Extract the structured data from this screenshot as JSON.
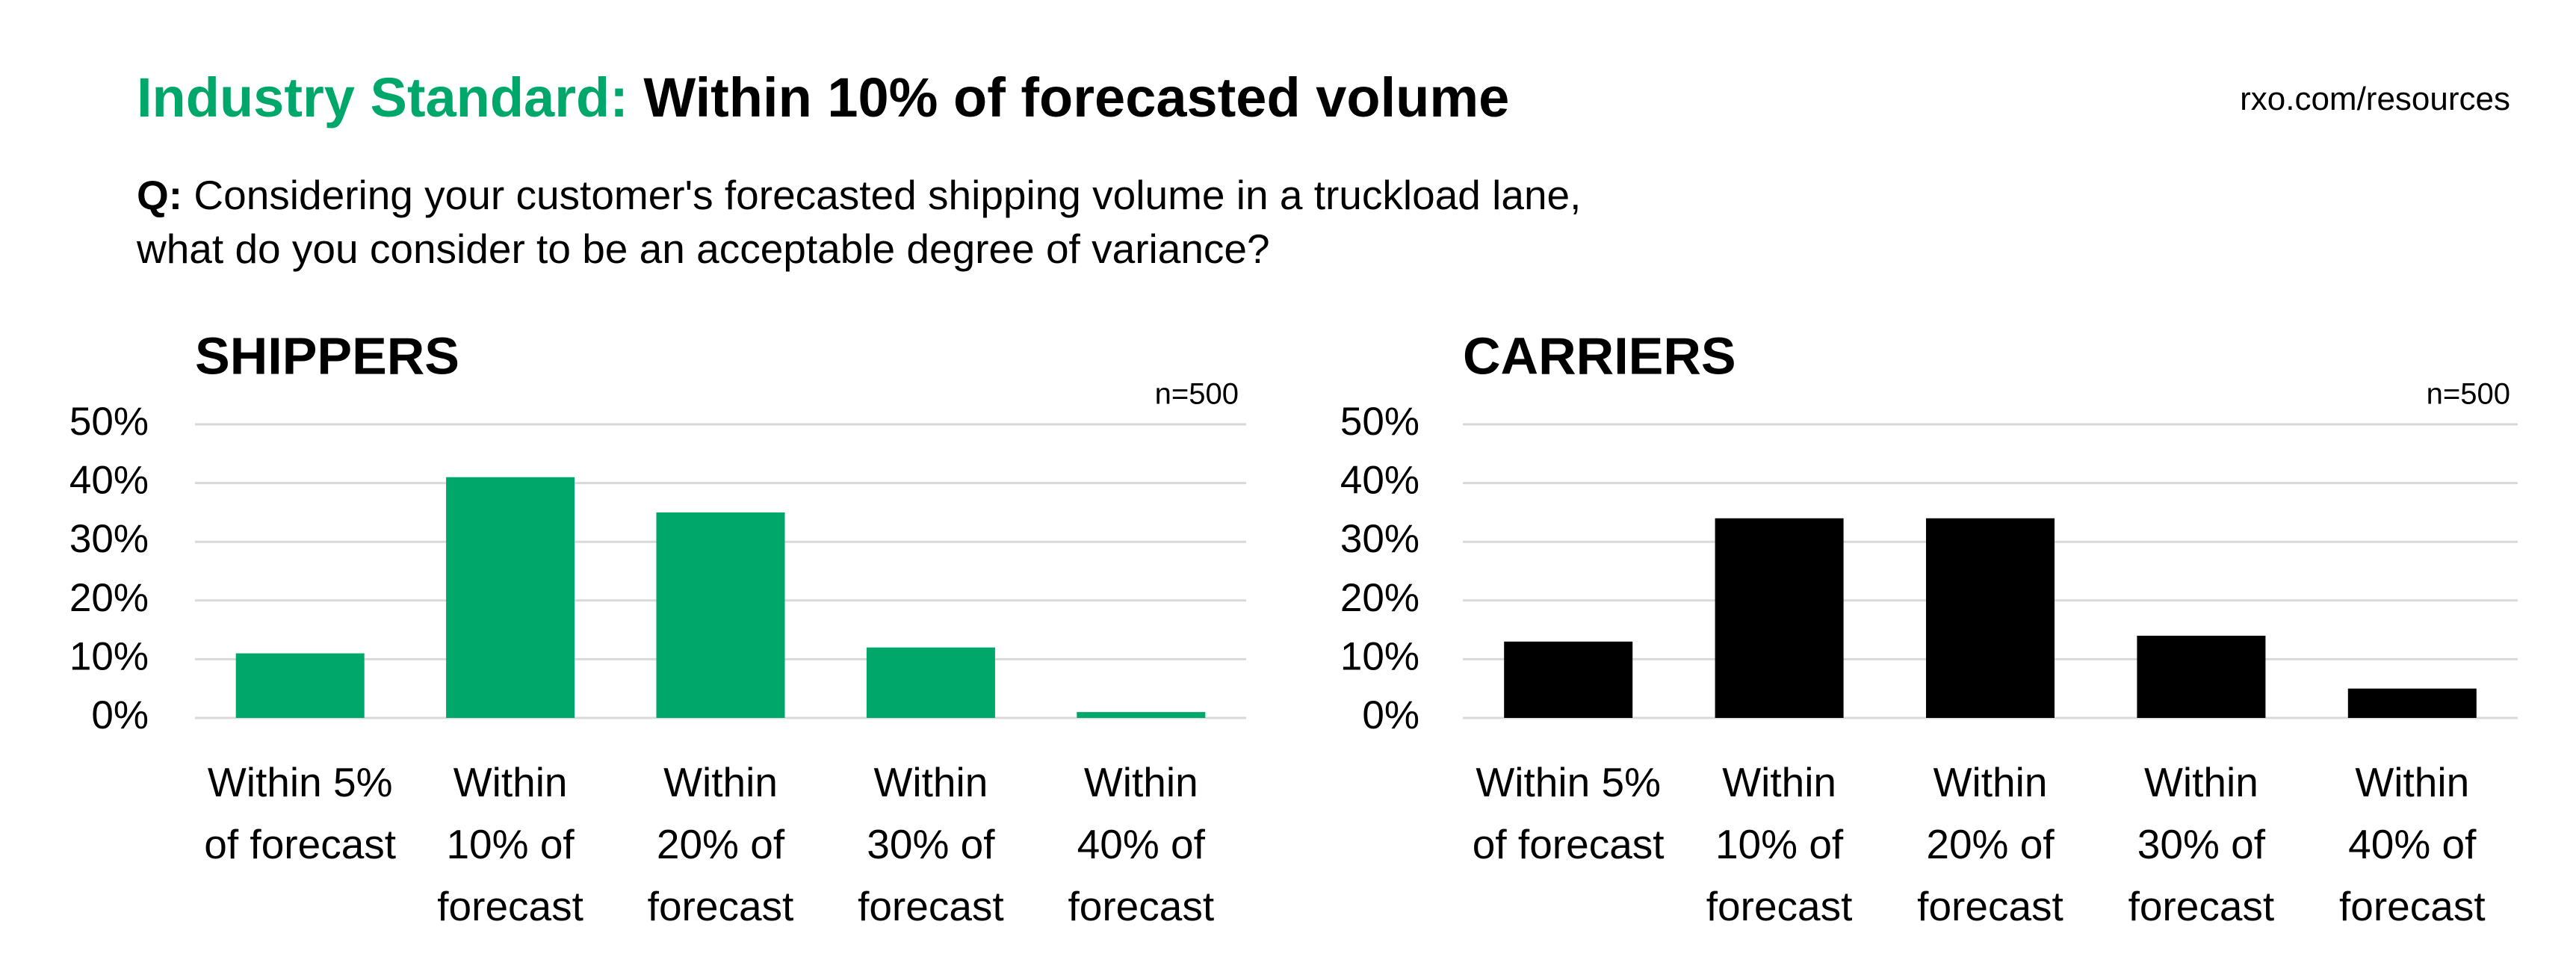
{
  "header": {
    "title_prefix": "Industry Standard:",
    "title": "Within 10% of forecasted volume",
    "source": "rxo.com/resources",
    "question_label": "Q:",
    "question_lines": [
      "Considering your customer's forecasted shipping volume in a truckload lane,",
      "what do you consider to be an acceptable degree of variance?"
    ]
  },
  "chart_data": [
    {
      "type": "bar",
      "title": "SHIPPERS",
      "note": "n=500",
      "categories": [
        "Within 5% of forecast",
        "Within 10% of forecast",
        "Within 20% of forecast",
        "Within 30% of forecast",
        "Within 40% of forecast"
      ],
      "values": [
        11,
        41,
        35,
        12,
        1
      ],
      "color": "#00a76a",
      "ylim": [
        0,
        50
      ],
      "yticks": [
        {
          "value": 0,
          "label": "0%"
        },
        {
          "value": 10,
          "label": "10%"
        },
        {
          "value": 20,
          "label": "20%"
        },
        {
          "value": 30,
          "label": "30%"
        },
        {
          "value": 40,
          "label": "40%"
        },
        {
          "value": 50,
          "label": "50%"
        }
      ],
      "grid": true
    },
    {
      "type": "bar",
      "title": "CARRIERS",
      "note": "n=500",
      "categories": [
        "Within 5% of forecast",
        "Within 10% of forecast",
        "Within 20% of forecast",
        "Within 30% of forecast",
        "Within 40% of forecast"
      ],
      "values": [
        13,
        34,
        34,
        14,
        5
      ],
      "color": "#000000",
      "ylim": [
        0,
        50
      ],
      "yticks": [
        {
          "value": 0,
          "label": "0%"
        },
        {
          "value": 10,
          "label": "10%"
        },
        {
          "value": 20,
          "label": "20%"
        },
        {
          "value": 30,
          "label": "30%"
        },
        {
          "value": 40,
          "label": "40%"
        },
        {
          "value": 50,
          "label": "50%"
        }
      ],
      "grid": true
    }
  ]
}
